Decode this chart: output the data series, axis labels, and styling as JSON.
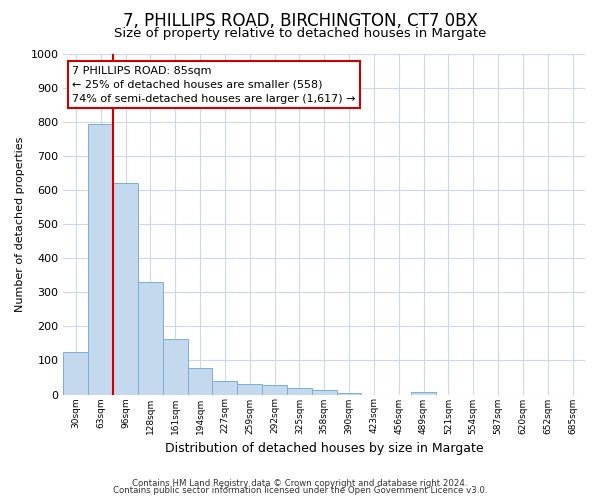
{
  "title1": "7, PHILLIPS ROAD, BIRCHINGTON, CT7 0BX",
  "title2": "Size of property relative to detached houses in Margate",
  "xlabel": "Distribution of detached houses by size in Margate",
  "ylabel": "Number of detached properties",
  "categories": [
    "30sqm",
    "63sqm",
    "96sqm",
    "128sqm",
    "161sqm",
    "194sqm",
    "227sqm",
    "259sqm",
    "292sqm",
    "325sqm",
    "358sqm",
    "390sqm",
    "423sqm",
    "456sqm",
    "489sqm",
    "521sqm",
    "554sqm",
    "587sqm",
    "620sqm",
    "652sqm",
    "685sqm"
  ],
  "values": [
    125,
    795,
    620,
    330,
    163,
    78,
    40,
    30,
    27,
    18,
    12,
    5,
    0,
    0,
    8,
    0,
    0,
    0,
    0,
    0,
    0
  ],
  "bar_color": "#c5d9ee",
  "bar_edge_color": "#7aafd4",
  "vline_color": "#cc0000",
  "vline_position": 2,
  "annotation_line1": "7 PHILLIPS ROAD: 85sqm",
  "annotation_line2": "← 25% of detached houses are smaller (558)",
  "annotation_line3": "74% of semi-detached houses are larger (1,617) →",
  "annotation_box_color": "#ffffff",
  "annotation_box_edge": "#cc0000",
  "ylim": [
    0,
    1000
  ],
  "yticks": [
    0,
    100,
    200,
    300,
    400,
    500,
    600,
    700,
    800,
    900,
    1000
  ],
  "footer1": "Contains HM Land Registry data © Crown copyright and database right 2024.",
  "footer2": "Contains public sector information licensed under the Open Government Licence v3.0.",
  "background_color": "#ffffff",
  "grid_color": "#cdd8e8",
  "title1_fontsize": 12,
  "title2_fontsize": 9.5
}
